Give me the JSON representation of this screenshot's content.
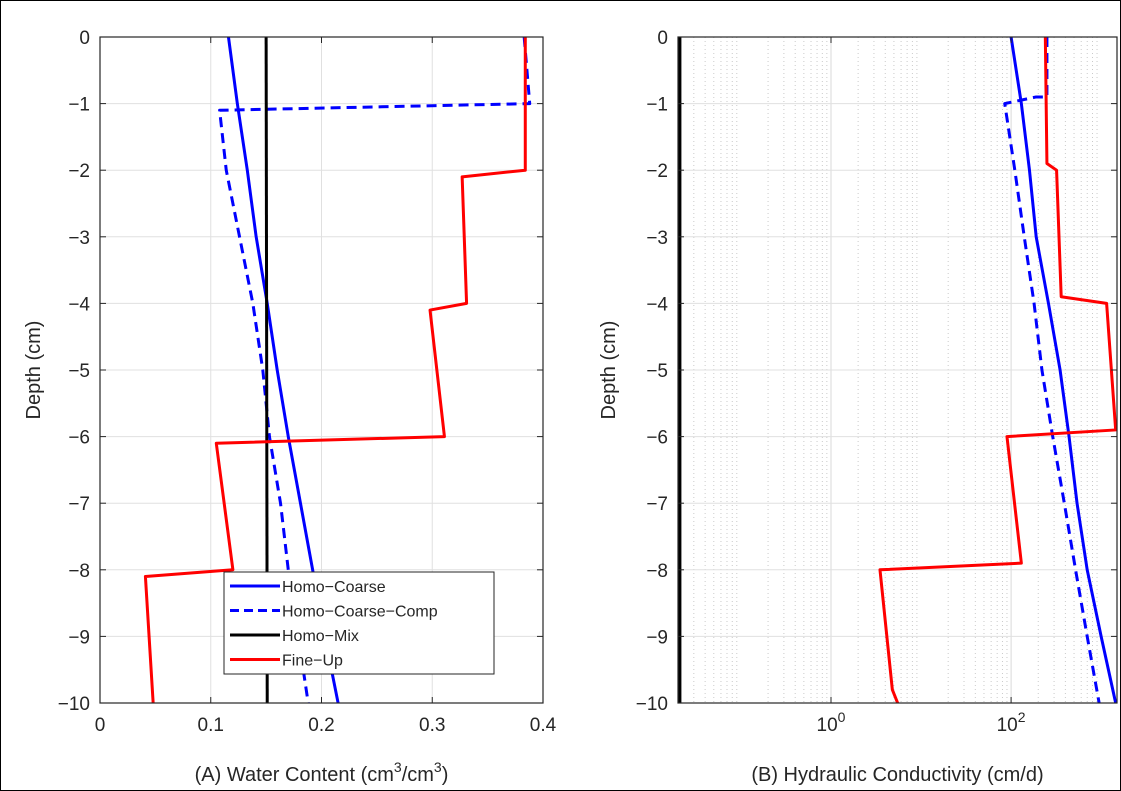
{
  "chart_data": [
    {
      "id": "panel-a",
      "type": "line",
      "xlabel": "(A) Water Content (cm³/cm³)",
      "xlabel_parts": {
        "pre": "(A) Water Content (cm",
        "sup1": "3",
        "mid": "/cm",
        "sup2": "3",
        "post": ")"
      },
      "ylabel": "Depth (cm)",
      "xlim": [
        0,
        0.4
      ],
      "ylim": [
        -10,
        0
      ],
      "xscale": "linear",
      "grid": true,
      "xticks": [
        0,
        0.1,
        0.2,
        0.3,
        0.4
      ],
      "xtick_labels": [
        "0",
        "0.1",
        "0.2",
        "0.3",
        "0.4"
      ],
      "yticks": [
        0,
        -1,
        -2,
        -3,
        -4,
        -5,
        -6,
        -7,
        -8,
        -9,
        -10
      ],
      "ytick_labels": [
        "0",
        "−1",
        "−2",
        "−3",
        "−4",
        "−5",
        "−6",
        "−7",
        "−8",
        "−9",
        "−10"
      ],
      "legend": {
        "position": "bottom-center",
        "entries": [
          "Homo−Coarse",
          "Homo−Coarse−Comp",
          "Homo−Mix",
          "Fine−Up"
        ]
      },
      "series": [
        {
          "name": "Homo−Coarse",
          "color": "#0000ff",
          "style": "solid",
          "points": [
            [
              0.116,
              0
            ],
            [
              0.124,
              -1
            ],
            [
              0.133,
              -2
            ],
            [
              0.141,
              -3
            ],
            [
              0.151,
              -4
            ],
            [
              0.16,
              -5
            ],
            [
              0.17,
              -6
            ],
            [
              0.181,
              -7
            ],
            [
              0.192,
              -8
            ],
            [
              0.203,
              -9
            ],
            [
              0.215,
              -10
            ]
          ]
        },
        {
          "name": "Homo−Coarse−Comp",
          "color": "#0000ff",
          "style": "dashed",
          "points": [
            [
              0.383,
              0
            ],
            [
              0.388,
              -1
            ],
            [
              0.108,
              -1.1
            ],
            [
              0.114,
              -2
            ],
            [
              0.126,
              -3
            ],
            [
              0.138,
              -4
            ],
            [
              0.147,
              -5
            ],
            [
              0.153,
              -6
            ],
            [
              0.163,
              -7
            ],
            [
              0.17,
              -8
            ],
            [
              0.179,
              -9
            ],
            [
              0.188,
              -10
            ]
          ]
        },
        {
          "name": "Homo−Mix",
          "color": "#000000",
          "style": "solid",
          "points": [
            [
              0.15,
              0
            ],
            [
              0.151,
              -10
            ]
          ]
        },
        {
          "name": "Fine−Up",
          "color": "#ff0000",
          "style": "solid",
          "points": [
            [
              0.384,
              0
            ],
            [
              0.384,
              -2
            ],
            [
              0.327,
              -2.1
            ],
            [
              0.331,
              -4
            ],
            [
              0.298,
              -4.1
            ],
            [
              0.311,
              -6
            ],
            [
              0.105,
              -6.1
            ],
            [
              0.12,
              -8
            ],
            [
              0.041,
              -8.1
            ],
            [
              0.048,
              -10
            ]
          ]
        }
      ]
    },
    {
      "id": "panel-b",
      "type": "line",
      "xlabel": "(B) Hydraulic Conductivity (cm/d)",
      "ylabel": "Depth (cm)",
      "xlim": [
        0.02,
        1500
      ],
      "ylim": [
        -10,
        0
      ],
      "xscale": "log",
      "grid": true,
      "xticks": [
        1,
        100
      ],
      "xtick_labels": [
        {
          "base": "10",
          "exp": "0"
        },
        {
          "base": "10",
          "exp": "2"
        }
      ],
      "yticks": [
        0,
        -1,
        -2,
        -3,
        -4,
        -5,
        -6,
        -7,
        -8,
        -9,
        -10
      ],
      "ytick_labels": [
        "0",
        "−1",
        "−2",
        "−3",
        "−4",
        "−5",
        "−6",
        "−7",
        "−8",
        "−9",
        "−10"
      ],
      "series": [
        {
          "name": "Homo−Coarse",
          "color": "#0000ff",
          "style": "solid",
          "points": [
            [
              100,
              0
            ],
            [
              130,
              -1
            ],
            [
              160,
              -2
            ],
            [
              190,
              -3
            ],
            [
              260,
              -4
            ],
            [
              350,
              -5
            ],
            [
              440,
              -6
            ],
            [
              540,
              -7
            ],
            [
              700,
              -8
            ],
            [
              1000,
              -9
            ],
            [
              1450,
              -10
            ]
          ]
        },
        {
          "name": "Homo−Coarse−Comp",
          "color": "#0000ff",
          "style": "dashed",
          "points": [
            [
              250,
              0
            ],
            [
              250,
              -0.9
            ],
            [
              190,
              -0.9
            ],
            [
              85,
              -1
            ],
            [
              110,
              -2
            ],
            [
              140,
              -3
            ],
            [
              180,
              -4
            ],
            [
              220,
              -5
            ],
            [
              290,
              -6
            ],
            [
              390,
              -7
            ],
            [
              520,
              -8
            ],
            [
              700,
              -9
            ],
            [
              950,
              -10
            ]
          ]
        },
        {
          "name": "Homo−Mix",
          "color": "#000000",
          "style": "solid",
          "points": [
            [
              0.021,
              0
            ],
            [
              0.021,
              -10
            ]
          ]
        },
        {
          "name": "Fine−Up",
          "color": "#ff0000",
          "style": "solid",
          "points": [
            [
              240,
              0
            ],
            [
              250,
              -1.9
            ],
            [
              320,
              -2
            ],
            [
              360,
              -3.9
            ],
            [
              1150,
              -4
            ],
            [
              1450,
              -5.9
            ],
            [
              90,
              -6
            ],
            [
              130,
              -7.9
            ],
            [
              3.5,
              -8
            ],
            [
              4.8,
              -9.8
            ],
            [
              5.5,
              -10
            ]
          ]
        }
      ]
    }
  ]
}
